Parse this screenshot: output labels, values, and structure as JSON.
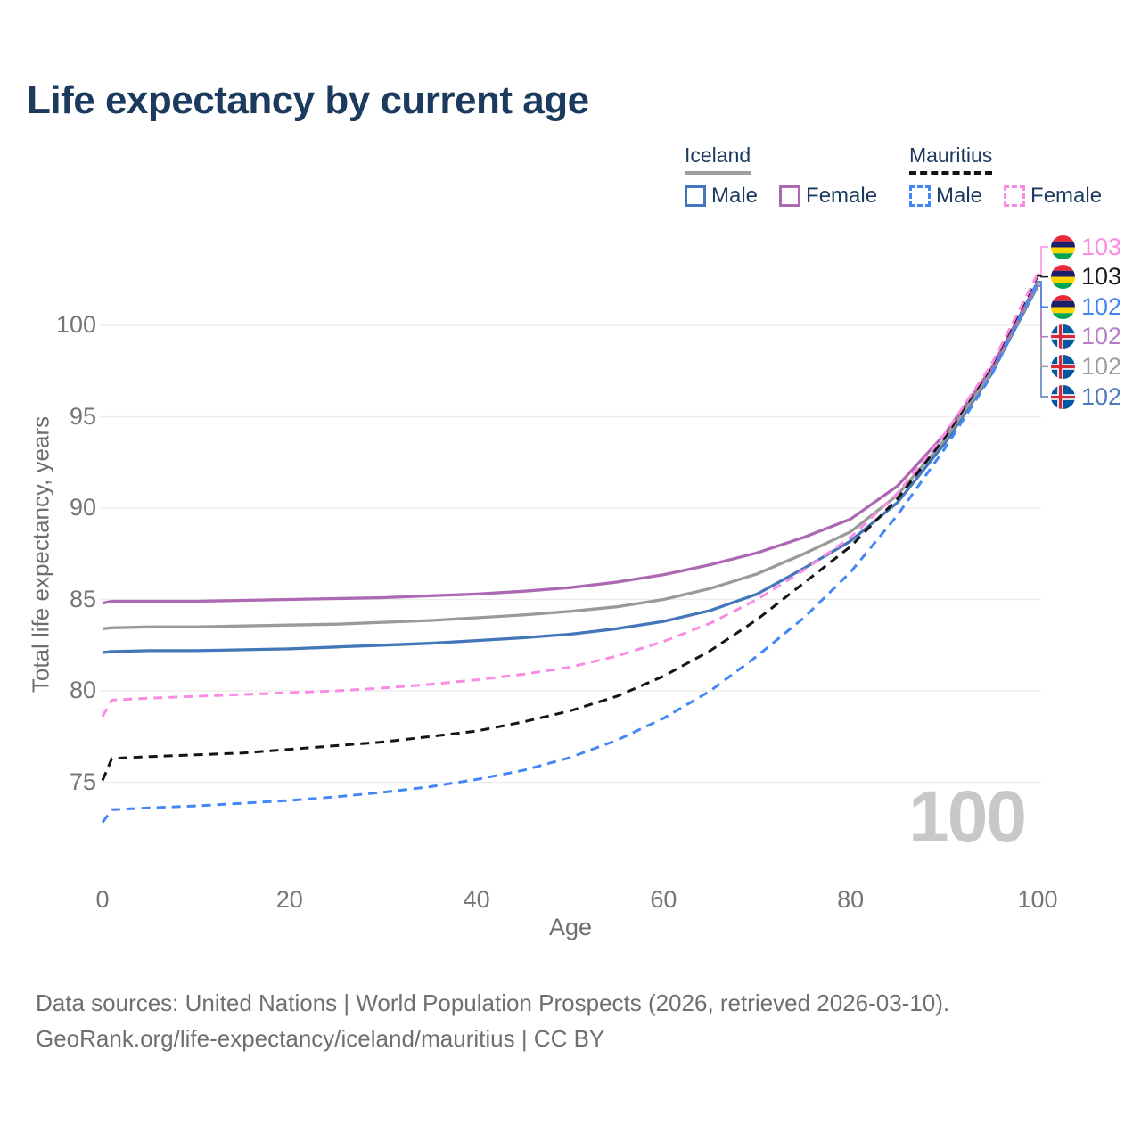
{
  "title": "Life expectancy by current age",
  "legend": {
    "iceland": {
      "title": "Iceland",
      "male": "Male",
      "female": "Female"
    },
    "mauritius": {
      "title": "Mauritius",
      "male": "Male",
      "female": "Female"
    }
  },
  "watermark_age": "100",
  "footer": {
    "line1": "Data sources: United Nations | World Population Prospects (2026, retrieved 2026-03-10).",
    "line2": "GeoRank.org/life-expectancy/iceland/mauritius | CC BY"
  },
  "chart_data": {
    "type": "line",
    "title": "Life expectancy by current age",
    "xlabel": "Age",
    "ylabel": "Total life expectancy, years",
    "x_ticks": [
      0,
      20,
      40,
      60,
      80,
      100
    ],
    "y_ticks": [
      75,
      80,
      85,
      90,
      95,
      100
    ],
    "xlim": [
      0,
      100
    ],
    "ylim": [
      71.5,
      104
    ],
    "grid": "horizontal-only",
    "gridline_color": "#ebebeb",
    "x": [
      0,
      1,
      5,
      10,
      15,
      20,
      25,
      30,
      35,
      40,
      45,
      50,
      55,
      60,
      65,
      70,
      75,
      80,
      85,
      90,
      95,
      100
    ],
    "series": [
      {
        "key": "iceland-male",
        "name": "Iceland Male",
        "country": "Iceland",
        "sex": "Male",
        "line_style": "solid",
        "color": "#4377b9",
        "values": [
          82.1,
          82.15,
          82.2,
          82.2,
          82.25,
          82.3,
          82.4,
          82.5,
          82.6,
          82.75,
          82.9,
          83.1,
          83.4,
          83.8,
          84.4,
          85.3,
          86.7,
          88.2,
          90.3,
          93.5,
          97.3,
          102.15
        ],
        "end_label": {
          "text": "102",
          "color": "#4e79c1",
          "flag": "iceland",
          "slot": 5
        }
      },
      {
        "key": "iceland-total",
        "name": "Iceland Total",
        "country": "Iceland",
        "sex": "All",
        "line_style": "solid",
        "color": "#9a9a9a",
        "values": [
          83.4,
          83.45,
          83.5,
          83.5,
          83.55,
          83.6,
          83.65,
          83.75,
          83.85,
          84.0,
          84.15,
          84.35,
          84.6,
          85.0,
          85.6,
          86.4,
          87.5,
          88.7,
          90.7,
          93.7,
          97.4,
          102.25
        ],
        "end_label": {
          "text": "102",
          "color": "#9e9e9e",
          "flag": "iceland",
          "slot": 4
        }
      },
      {
        "key": "iceland-female",
        "name": "Iceland Female",
        "country": "Iceland",
        "sex": "Female",
        "line_style": "solid",
        "color": "#ad68b3",
        "values": [
          84.8,
          84.9,
          84.9,
          84.9,
          84.95,
          85.0,
          85.05,
          85.1,
          85.2,
          85.3,
          85.45,
          85.65,
          85.95,
          86.35,
          86.9,
          87.55,
          88.4,
          89.4,
          91.2,
          94.0,
          97.6,
          102.35
        ],
        "end_label": {
          "text": "102",
          "color": "#b57fc6",
          "flag": "iceland",
          "slot": 3
        }
      },
      {
        "key": "mauritius-male",
        "name": "Mauritius Male",
        "country": "Mauritius",
        "sex": "Male",
        "line_style": "dashed",
        "color": "#4287f5",
        "values": [
          72.8,
          73.5,
          73.6,
          73.7,
          73.85,
          74.0,
          74.2,
          74.45,
          74.75,
          75.15,
          75.65,
          76.35,
          77.3,
          78.5,
          80.0,
          81.9,
          84.0,
          86.5,
          89.6,
          93.2,
          97.2,
          102.4
        ],
        "end_label": {
          "text": "102",
          "color": "#4285f4",
          "flag": "mauritius",
          "slot": 2
        }
      },
      {
        "key": "mauritius-total",
        "name": "Mauritius Total",
        "country": "Mauritius",
        "sex": "All",
        "line_style": "dashed",
        "color": "#141414",
        "values": [
          75.1,
          76.3,
          76.4,
          76.5,
          76.6,
          76.8,
          77.0,
          77.2,
          77.5,
          77.8,
          78.3,
          78.9,
          79.7,
          80.8,
          82.2,
          83.9,
          85.9,
          87.9,
          90.5,
          93.8,
          97.7,
          102.7
        ],
        "end_label": {
          "text": "103",
          "color": "#1a1a1a",
          "flag": "mauritius",
          "slot": 1
        }
      },
      {
        "key": "mauritius-female",
        "name": "Mauritius Female",
        "country": "Mauritius",
        "sex": "Female",
        "line_style": "dashed",
        "color": "#fb8ae3",
        "values": [
          78.6,
          79.5,
          79.6,
          79.7,
          79.8,
          79.9,
          80.0,
          80.15,
          80.35,
          80.6,
          80.9,
          81.3,
          81.9,
          82.7,
          83.7,
          85.0,
          86.6,
          88.4,
          90.8,
          94.0,
          97.8,
          102.8
        ],
        "end_label": {
          "text": "103",
          "color": "#fb8ae3",
          "flag": "mauritius",
          "slot": 0
        }
      }
    ]
  }
}
